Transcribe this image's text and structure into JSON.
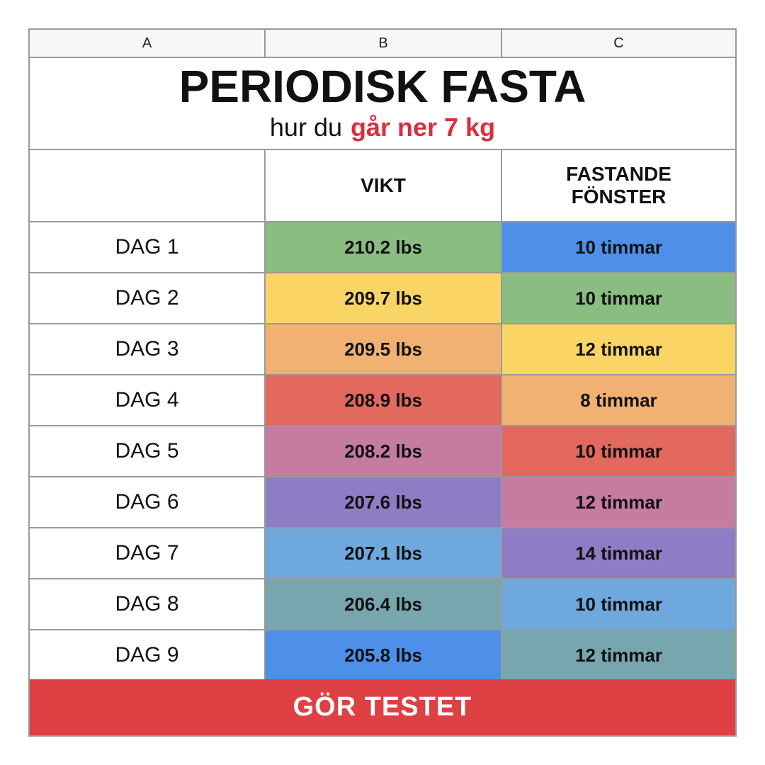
{
  "columns": [
    "A",
    "B",
    "C"
  ],
  "title": "PERIODISK FASTA",
  "subtitle": {
    "prefix": "hur du",
    "highlight": "går ner 7 kg",
    "highlight_color": "#d92e3e"
  },
  "headers": {
    "col1": "",
    "col2": "VIKT",
    "col3_line1": "FASTANDE",
    "col3_line2": "FÖNSTER"
  },
  "rows": [
    {
      "day": "DAG 1",
      "weight": "210.2 lbs",
      "weight_color": "#8abd82",
      "window": "10 timmar",
      "window_color": "#4d8fe9"
    },
    {
      "day": "DAG 2",
      "weight": "209.7 lbs",
      "weight_color": "#fad566",
      "window": "10 timmar",
      "window_color": "#8abd82"
    },
    {
      "day": "DAG 3",
      "weight": "209.5 lbs",
      "weight_color": "#f0b173",
      "window": "12 timmar",
      "window_color": "#fad566"
    },
    {
      "day": "DAG 4",
      "weight": "208.9 lbs",
      "weight_color": "#e3685e",
      "window": "8 timmar",
      "window_color": "#f0b173"
    },
    {
      "day": "DAG 5",
      "weight": "208.2 lbs",
      "weight_color": "#c67ba1",
      "window": "10 timmar",
      "window_color": "#e3685e"
    },
    {
      "day": "DAG 6",
      "weight": "207.6 lbs",
      "weight_color": "#8e7cc4",
      "window": "12 timmar",
      "window_color": "#c67ba1"
    },
    {
      "day": "DAG 7",
      "weight": "207.1 lbs",
      "weight_color": "#6fa8dc",
      "window": "14 timmar",
      "window_color": "#8e7cc4"
    },
    {
      "day": "DAG 8",
      "weight": "206.4 lbs",
      "weight_color": "#77a6ae",
      "window": "10 timmar",
      "window_color": "#6fa8dc"
    },
    {
      "day": "DAG 9",
      "weight": "205.8 lbs",
      "weight_color": "#4d8fe9",
      "window": "12 timmar",
      "window_color": "#77a6ae"
    }
  ],
  "cta": {
    "label": "GÖR TESTET",
    "color": "#df4043"
  }
}
